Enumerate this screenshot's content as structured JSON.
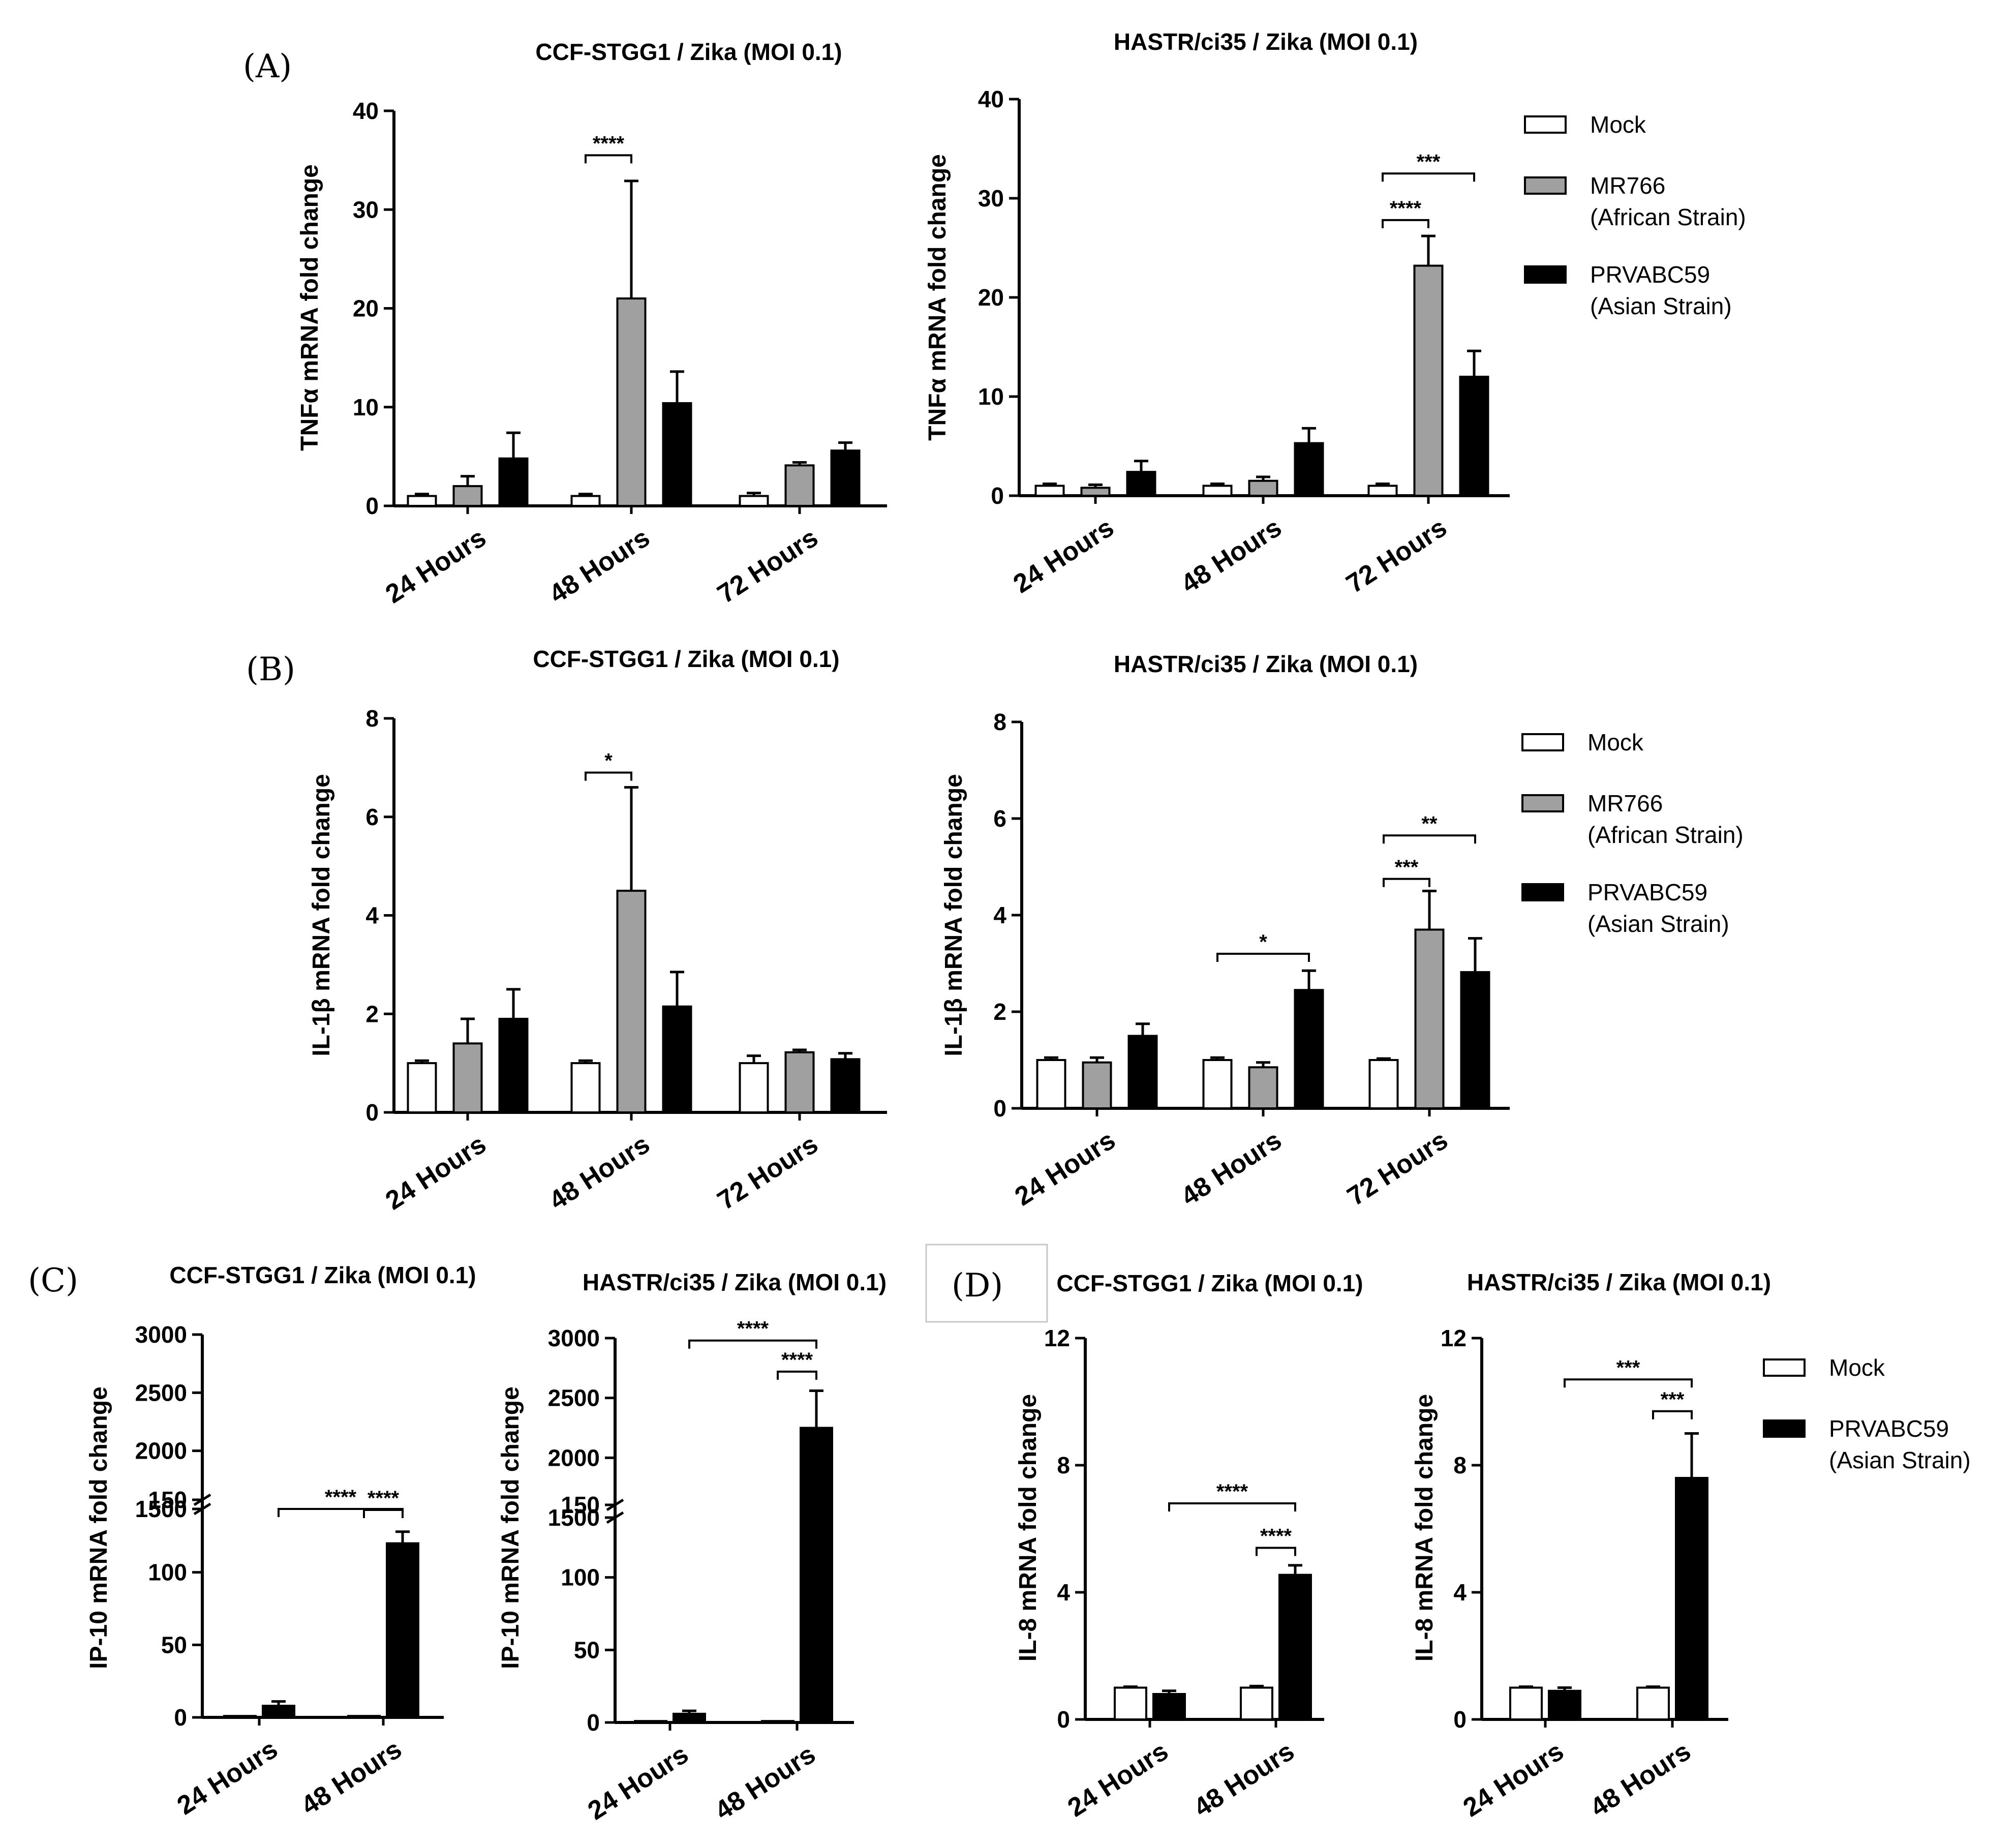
{
  "figure": {
    "panel_letters": [
      "(A)",
      "(B)",
      "(C)",
      "(D)"
    ]
  },
  "legends": {
    "three_group": [
      {
        "label": [
          "Mock"
        ],
        "color": "#ffffff"
      },
      {
        "label": [
          "MR766",
          "(African Strain)"
        ],
        "color": "#a0a0a0"
      },
      {
        "label": [
          "PRVABC59",
          "(Asian Strain)"
        ],
        "color": "#000000"
      }
    ],
    "two_group": [
      {
        "label": [
          "Mock"
        ],
        "color": "#ffffff"
      },
      {
        "label": [
          "PRVABC59",
          "(Asian Strain)"
        ],
        "color": "#000000"
      }
    ]
  },
  "chart_data": [
    {
      "id": "A1",
      "type": "bar",
      "panel": "(A)",
      "title": "CCF-STGG1 / Zika (MOI 0.1)",
      "ylabel": "TNFα mRNA fold change",
      "ylim": [
        0,
        40
      ],
      "yticks": [
        0,
        10,
        20,
        30,
        40
      ],
      "categories": [
        "24 Hours",
        "48 Hours",
        "72 Hours"
      ],
      "series": [
        {
          "name": "Mock",
          "color": "#ffffff",
          "values": [
            1.0,
            1.0,
            1.0
          ],
          "errors": [
            0.2,
            0.2,
            0.3
          ]
        },
        {
          "name": "MR766 (African Strain)",
          "color": "#a0a0a0",
          "values": [
            2.0,
            21.0,
            4.1
          ],
          "errors": [
            1.0,
            11.9,
            0.3
          ]
        },
        {
          "name": "PRVABC59 (Asian Strain)",
          "color": "#000000",
          "values": [
            4.8,
            10.4,
            5.6
          ],
          "errors": [
            2.6,
            3.2,
            0.8
          ]
        }
      ],
      "significance": [
        {
          "label": "****",
          "category": 1,
          "from": 0,
          "to": 1,
          "y": 35.5
        }
      ]
    },
    {
      "id": "A2",
      "type": "bar",
      "title": "HASTR/ci35 / Zika (MOI 0.1)",
      "ylabel": "TNFα mRNA fold change",
      "ylim": [
        0,
        40
      ],
      "yticks": [
        0,
        10,
        20,
        30,
        40
      ],
      "categories": [
        "24 Hours",
        "48 Hours",
        "72 Hours"
      ],
      "series": [
        {
          "name": "Mock",
          "color": "#ffffff",
          "values": [
            1.0,
            1.0,
            1.0
          ],
          "errors": [
            0.2,
            0.2,
            0.2
          ]
        },
        {
          "name": "MR766 (African Strain)",
          "color": "#a0a0a0",
          "values": [
            0.8,
            1.5,
            23.2
          ],
          "errors": [
            0.3,
            0.4,
            3.0
          ]
        },
        {
          "name": "PRVABC59 (Asian Strain)",
          "color": "#000000",
          "values": [
            2.4,
            5.3,
            12.0
          ],
          "errors": [
            1.1,
            1.5,
            2.6
          ]
        }
      ],
      "significance": [
        {
          "label": "****",
          "category": 2,
          "from": 0,
          "to": 1,
          "y": 27.8
        },
        {
          "label": "***",
          "category": 2,
          "from": 0,
          "to": 2,
          "y": 32.5
        }
      ],
      "legend": "three_group"
    },
    {
      "id": "B1",
      "type": "bar",
      "panel": "(B)",
      "title": "CCF-STGG1 / Zika (MOI 0.1)",
      "ylabel": "IL-1β mRNA fold change",
      "ylim": [
        0,
        8
      ],
      "yticks": [
        0,
        2,
        4,
        6,
        8
      ],
      "categories": [
        "24 Hours",
        "48 Hours",
        "72 Hours"
      ],
      "series": [
        {
          "name": "Mock",
          "color": "#ffffff",
          "values": [
            1.0,
            1.0,
            1.0
          ],
          "errors": [
            0.05,
            0.05,
            0.15
          ]
        },
        {
          "name": "MR766 (African Strain)",
          "color": "#a0a0a0",
          "values": [
            1.4,
            4.5,
            1.22
          ],
          "errors": [
            0.5,
            2.1,
            0.05
          ]
        },
        {
          "name": "PRVABC59 (Asian Strain)",
          "color": "#000000",
          "values": [
            1.9,
            2.15,
            1.08
          ],
          "errors": [
            0.6,
            0.7,
            0.12
          ]
        }
      ],
      "significance": [
        {
          "label": "*",
          "category": 1,
          "from": 0,
          "to": 1,
          "y": 6.9
        }
      ]
    },
    {
      "id": "B2",
      "type": "bar",
      "title": "HASTR/ci35 / Zika (MOI 0.1)",
      "ylabel": "IL-1β mRNA fold change",
      "ylim": [
        0,
        8
      ],
      "yticks": [
        0,
        2,
        4,
        6,
        8
      ],
      "categories": [
        "24 Hours",
        "48 Hours",
        "72 Hours"
      ],
      "series": [
        {
          "name": "Mock",
          "color": "#ffffff",
          "values": [
            1.0,
            1.0,
            1.0
          ],
          "errors": [
            0.05,
            0.05,
            0.03
          ]
        },
        {
          "name": "MR766 (African Strain)",
          "color": "#a0a0a0",
          "values": [
            0.95,
            0.85,
            3.7
          ],
          "errors": [
            0.1,
            0.1,
            0.8
          ]
        },
        {
          "name": "PRVABC59 (Asian Strain)",
          "color": "#000000",
          "values": [
            1.5,
            2.45,
            2.82
          ],
          "errors": [
            0.25,
            0.4,
            0.7
          ]
        }
      ],
      "significance": [
        {
          "label": "*",
          "category": 1,
          "from": 0,
          "to": 2,
          "y": 3.2
        },
        {
          "label": "***",
          "category": 2,
          "from": 0,
          "to": 1,
          "y": 4.75
        },
        {
          "label": "**",
          "category": 2,
          "from": 0,
          "to": 2,
          "y": 5.65
        }
      ],
      "legend": "three_group"
    },
    {
      "id": "C1",
      "type": "bar",
      "panel": "(C)",
      "title": "CCF-STGG1 / Zika (MOI 0.1)",
      "ylabel": "IP-10 mRNA fold change",
      "broken_axis": true,
      "lower": {
        "ylim": [
          0,
          150
        ],
        "yticks": [
          0,
          50,
          100,
          150
        ]
      },
      "upper": {
        "ylim": [
          1500,
          3000
        ],
        "yticks": [
          1500,
          2000,
          2500,
          3000
        ]
      },
      "categories": [
        "24 Hours",
        "48 Hours"
      ],
      "series": [
        {
          "name": "Mock",
          "color": "#ffffff",
          "values": [
            1,
            1
          ],
          "errors": [
            0,
            0
          ]
        },
        {
          "name": "PRVABC59 (Asian Strain)",
          "color": "#000000",
          "values": [
            8,
            120
          ],
          "errors": [
            3,
            8
          ]
        }
      ],
      "significance": [
        {
          "label": "****",
          "category_from": 0,
          "bar_from": 1,
          "category_to": 1,
          "bar_to": 1,
          "y": 1440
        },
        {
          "label": "****",
          "category_from": 1,
          "bar_from": 0,
          "category_to": 1,
          "bar_to": 1,
          "y": 143
        }
      ]
    },
    {
      "id": "C2",
      "type": "bar",
      "title": "HASTR/ci35 / Zika (MOI 0.1)",
      "ylabel": "IP-10 mRNA fold change",
      "broken_axis": true,
      "lower": {
        "ylim": [
          0,
          150
        ],
        "yticks": [
          0,
          50,
          100,
          150
        ]
      },
      "upper": {
        "ylim": [
          1500,
          3000
        ],
        "yticks": [
          1500,
          2000,
          2500,
          3000
        ]
      },
      "categories": [
        "24 Hours",
        "48 Hours"
      ],
      "series": [
        {
          "name": "Mock",
          "color": "#ffffff",
          "values": [
            1,
            1
          ],
          "errors": [
            0,
            0
          ]
        },
        {
          "name": "PRVABC59 (Asian Strain)",
          "color": "#000000",
          "values": [
            6,
            2250
          ],
          "errors": [
            2,
            310
          ]
        }
      ],
      "significance": [
        {
          "label": "****",
          "category_from": 0,
          "bar_from": 1,
          "category_to": 1,
          "bar_to": 1,
          "y": 2980
        },
        {
          "label": "****",
          "category_from": 1,
          "bar_from": 0,
          "category_to": 1,
          "bar_to": 1,
          "y": 2720
        }
      ]
    },
    {
      "id": "D1",
      "type": "bar",
      "panel": "(D)",
      "title": "CCF-STGG1 / Zika (MOI 0.1)",
      "ylabel": "IL-8 mRNA fold change",
      "ylim": [
        0,
        12
      ],
      "yticks": [
        0,
        4,
        8,
        12
      ],
      "categories": [
        "24 Hours",
        "48 Hours"
      ],
      "series": [
        {
          "name": "Mock",
          "color": "#ffffff",
          "values": [
            1.0,
            1.0
          ],
          "errors": [
            0.03,
            0.05
          ]
        },
        {
          "name": "PRVABC59 (Asian Strain)",
          "color": "#000000",
          "values": [
            0.8,
            4.55
          ],
          "errors": [
            0.1,
            0.3
          ]
        }
      ],
      "significance": [
        {
          "label": "****",
          "category_from": 0,
          "bar_from": 1,
          "category_to": 1,
          "bar_to": 1,
          "y": 6.8
        },
        {
          "label": "****",
          "category_from": 1,
          "bar_from": 0,
          "category_to": 1,
          "bar_to": 1,
          "y": 5.4
        }
      ]
    },
    {
      "id": "D2",
      "type": "bar",
      "title": "HASTR/ci35 / Zika (MOI 0.1)",
      "ylabel": "IL-8 mRNA fold change",
      "ylim": [
        0,
        12
      ],
      "yticks": [
        0,
        4,
        8,
        12
      ],
      "categories": [
        "24 Hours",
        "48 Hours"
      ],
      "series": [
        {
          "name": "Mock",
          "color": "#ffffff",
          "values": [
            1.0,
            1.0
          ],
          "errors": [
            0.03,
            0.03
          ]
        },
        {
          "name": "PRVABC59 (Asian Strain)",
          "color": "#000000",
          "values": [
            0.9,
            7.6
          ],
          "errors": [
            0.1,
            1.4
          ]
        }
      ],
      "significance": [
        {
          "label": "***",
          "category_from": 0,
          "bar_from": 1,
          "category_to": 1,
          "bar_to": 1,
          "y": 10.7
        },
        {
          "label": "***",
          "category_from": 1,
          "bar_from": 0,
          "category_to": 1,
          "bar_to": 1,
          "y": 9.7
        }
      ],
      "legend": "two_group"
    }
  ]
}
